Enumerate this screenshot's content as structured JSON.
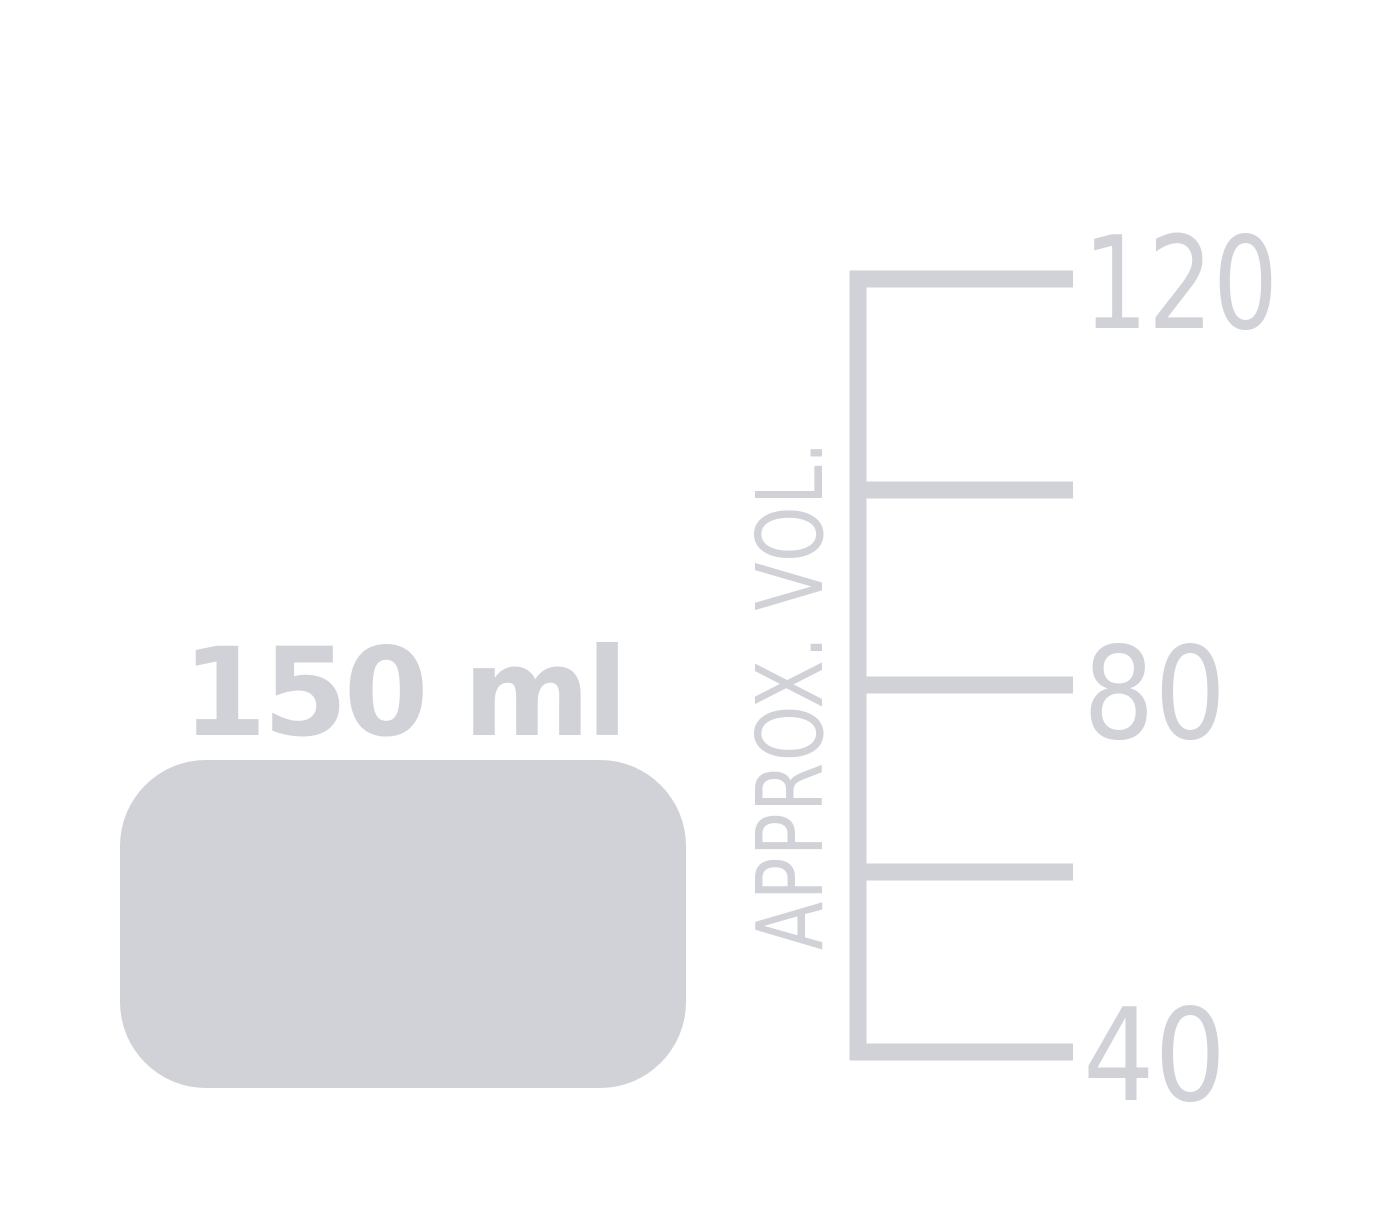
{
  "capacity": {
    "label": "150 ml"
  },
  "scale": {
    "axis_title": "APPROX. VOL.",
    "ticks": [
      {
        "value": 120,
        "label": "120"
      },
      {
        "value": 100,
        "label": ""
      },
      {
        "value": 80,
        "label": "80"
      },
      {
        "value": 60,
        "label": ""
      },
      {
        "value": 40,
        "label": "40"
      }
    ]
  },
  "colors": {
    "graphic": "#d0d2d7",
    "background": "#ffffff"
  }
}
